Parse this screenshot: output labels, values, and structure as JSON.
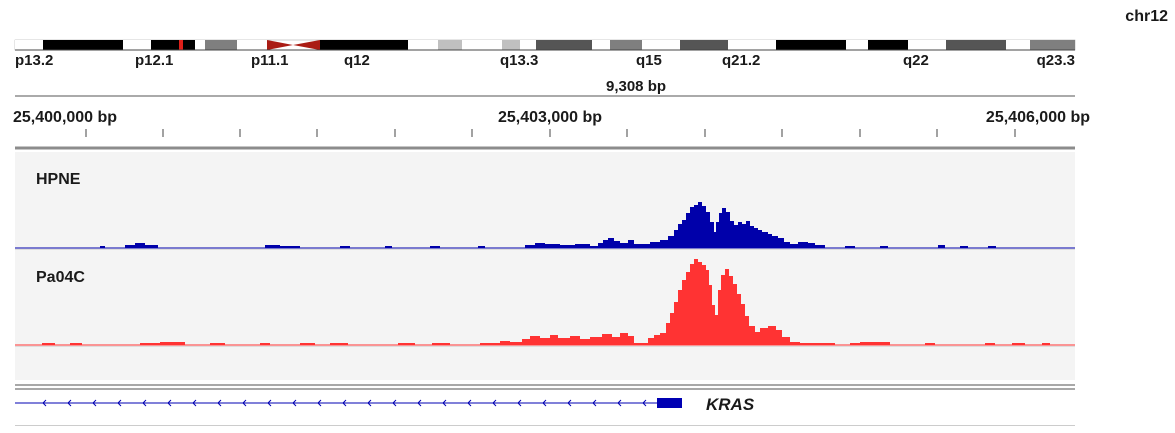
{
  "chromosome": "chr12",
  "ideogram": {
    "bands": [
      "p13.2",
      "p12.1",
      "p11.1",
      "q12",
      "q13.3",
      "q15",
      "q21.2",
      "q22",
      "q23.3"
    ]
  },
  "ruler": {
    "span_label": "9,308 bp",
    "tick_labels": [
      "25,400,000 bp",
      "25,403,000 bp",
      "25,406,000 bp"
    ]
  },
  "tracks": [
    {
      "name": "HPNE",
      "color": "#0000aa"
    },
    {
      "name": "Pa04C",
      "color": "#ff3333"
    }
  ],
  "gene": {
    "name": "KRAS",
    "color": "#0000b3",
    "strand": "-"
  }
}
